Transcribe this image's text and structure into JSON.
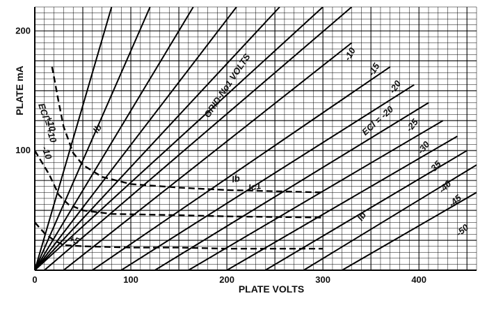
{
  "chart_data": {
    "type": "line",
    "xlabel": "PLATE VOLTS",
    "ylabel": "PLATE mA",
    "xlim": [
      0,
      460
    ],
    "ylim": [
      0,
      220
    ],
    "x_ticks": [
      "0",
      "100",
      "200",
      "300",
      "400"
    ],
    "y_ticks": [
      "100",
      "200"
    ],
    "grid": true,
    "annotations": [
      "GRID-No1 VOLTS",
      "ECl = -20",
      "ECl = +10"
    ],
    "plate_curves": [
      {
        "label": "",
        "points": [
          [
            0,
            0
          ],
          [
            80,
            220
          ]
        ]
      },
      {
        "label": "",
        "points": [
          [
            0,
            0
          ],
          [
            120,
            220
          ]
        ]
      },
      {
        "label": "",
        "points": [
          [
            0,
            0
          ],
          [
            165,
            220
          ]
        ]
      },
      {
        "label": "",
        "points": [
          [
            0,
            0
          ],
          [
            210,
            220
          ]
        ]
      },
      {
        "label": "",
        "points": [
          [
            0,
            0
          ],
          [
            255,
            220
          ]
        ]
      },
      {
        "label": "",
        "points": [
          [
            0,
            0
          ],
          [
            300,
            220
          ]
        ]
      },
      {
        "label": "",
        "points": [
          [
            10,
            0
          ],
          [
            330,
            220
          ]
        ]
      },
      {
        "label": "-10",
        "points": [
          [
            30,
            0
          ],
          [
            330,
            190
          ]
        ]
      },
      {
        "label": "-15",
        "points": [
          [
            60,
            0
          ],
          [
            370,
            170
          ]
        ]
      },
      {
        "label": "-20",
        "points": [
          [
            90,
            0
          ],
          [
            395,
            155
          ]
        ]
      },
      {
        "label": "-25",
        "points": [
          [
            125,
            0
          ],
          [
            410,
            140
          ]
        ]
      },
      {
        "label": "-30",
        "points": [
          [
            160,
            0
          ],
          [
            425,
            125
          ]
        ]
      },
      {
        "label": "-35",
        "points": [
          [
            200,
            0
          ],
          [
            440,
            112
          ]
        ]
      },
      {
        "label": "-40",
        "points": [
          [
            240,
            0
          ],
          [
            450,
            100
          ]
        ]
      },
      {
        "label": "-45",
        "points": [
          [
            280,
            0
          ],
          [
            460,
            88
          ]
        ]
      },
      {
        "label": "-50",
        "points": [
          [
            320,
            0
          ],
          [
            460,
            65
          ]
        ]
      }
    ],
    "screen_curves": [
      {
        "label": "+10",
        "points": [
          [
            18,
            170
          ],
          [
            25,
            140
          ],
          [
            30,
            120
          ],
          [
            40,
            98
          ],
          [
            50,
            88
          ],
          [
            70,
            78
          ],
          [
            100,
            72
          ],
          [
            150,
            69
          ],
          [
            200,
            67
          ],
          [
            300,
            65
          ]
        ]
      },
      {
        "label": "-10",
        "points": [
          [
            0,
            100
          ],
          [
            15,
            80
          ],
          [
            25,
            63
          ],
          [
            35,
            55
          ],
          [
            50,
            50
          ],
          [
            80,
            47
          ],
          [
            150,
            46
          ],
          [
            200,
            45
          ],
          [
            300,
            44
          ]
        ]
      },
      {
        "label": "+5",
        "points": [
          [
            0,
            40
          ],
          [
            10,
            31
          ],
          [
            20,
            25
          ],
          [
            30,
            21
          ],
          [
            50,
            20
          ],
          [
            100,
            19
          ],
          [
            150,
            19
          ],
          [
            200,
            18
          ],
          [
            300,
            18
          ]
        ]
      }
    ],
    "curve_labels": [
      "Ib",
      "Ib",
      "Ic1",
      "Ib"
    ]
  }
}
